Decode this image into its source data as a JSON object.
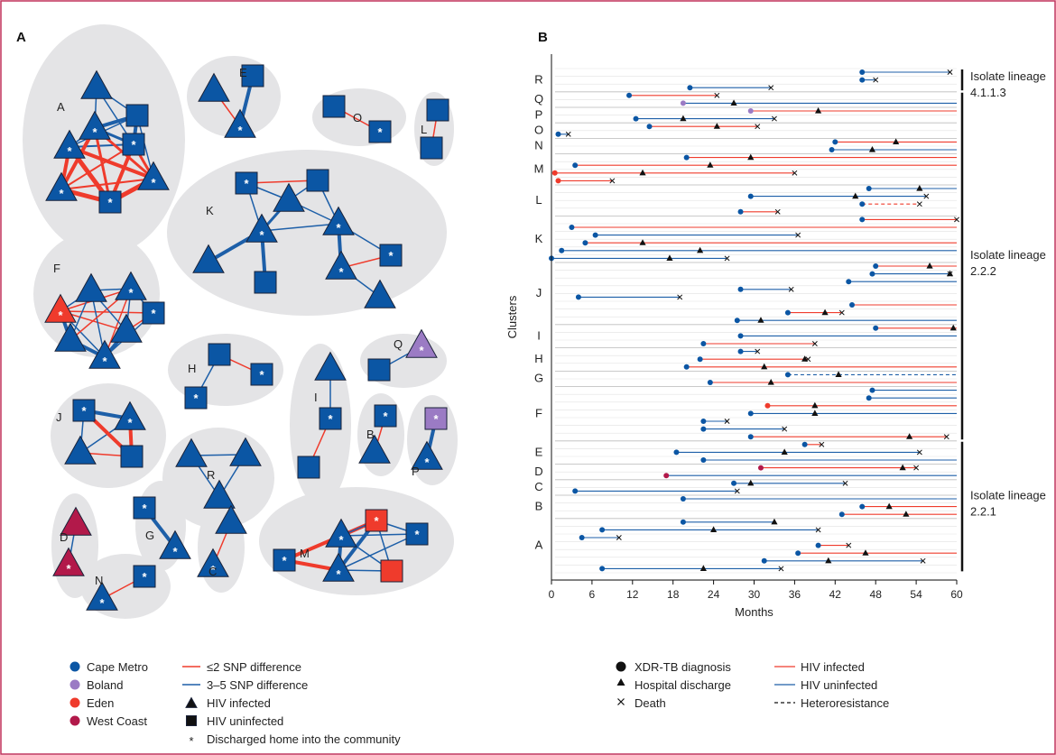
{
  "colors": {
    "cape_metro": "#0b56a4",
    "boland": "#9b7bc4",
    "eden": "#ef3b2c",
    "west_coast": "#b2194a",
    "edge_close": "#ef3b2c",
    "edge_far": "#1d5fa8",
    "blob": "#e4e4e6",
    "frame": "#c0305a"
  },
  "panel_a": {
    "label": "A",
    "clusters": [
      {
        "id": "A",
        "label": "A"
      },
      {
        "id": "E",
        "label": "E"
      },
      {
        "id": "O",
        "label": "O"
      },
      {
        "id": "L",
        "label": "L"
      },
      {
        "id": "K",
        "label": "K"
      },
      {
        "id": "F",
        "label": "F"
      },
      {
        "id": "H",
        "label": "H"
      },
      {
        "id": "Q",
        "label": "Q"
      },
      {
        "id": "J",
        "label": "J"
      },
      {
        "id": "I",
        "label": "I"
      },
      {
        "id": "B",
        "label": "B"
      },
      {
        "id": "P",
        "label": "P"
      },
      {
        "id": "R",
        "label": "R"
      },
      {
        "id": "G",
        "label": "G"
      },
      {
        "id": "D",
        "label": "D"
      },
      {
        "id": "C",
        "label": "C"
      },
      {
        "id": "N",
        "label": "N"
      },
      {
        "id": "M",
        "label": "M"
      }
    ],
    "legend": {
      "regions": [
        "Cape Metro",
        "Boland",
        "Eden",
        "West Coast"
      ],
      "edges": [
        "≤2 SNP difference",
        "3–5 SNP difference"
      ],
      "shapes": [
        "HIV infected",
        "HIV uninfected"
      ],
      "star": "Discharged home into the community",
      "star_symbol": "*"
    }
  },
  "panel_b": {
    "label": "B",
    "legend": {
      "markers": [
        "XDR-TB diagnosis",
        "Hospital discharge",
        "Death"
      ],
      "lines": [
        "HIV infected",
        "HIV uninfected",
        "Heteroresistance"
      ]
    },
    "lineages": [
      "Isolate lineage 4.1.1.3",
      "Isolate lineage 2.2.2",
      "Isolate lineage 2.2.1"
    ]
  },
  "chart_data": {
    "type": "timeline",
    "xlabel": "Months",
    "ylabel": "Clusters",
    "xlim": [
      0,
      60
    ],
    "xticks": [
      0,
      6,
      12,
      18,
      24,
      30,
      36,
      42,
      48,
      54,
      60
    ],
    "patients": [
      {
        "cluster": "R",
        "start": 46,
        "end": 59,
        "hiv": false,
        "discharge": null,
        "death": 59,
        "hetero": false,
        "lineage": "4.1.1.3"
      },
      {
        "cluster": "R",
        "start": 46,
        "end": 48,
        "hiv": false,
        "discharge": null,
        "death": 48,
        "hetero": false,
        "lineage": "4.1.1.3"
      },
      {
        "cluster": "R",
        "start": 20.5,
        "end": 32.5,
        "hiv": false,
        "discharge": null,
        "death": 32.5,
        "hetero": false,
        "lineage": "4.1.1.3"
      },
      {
        "cluster": "Q",
        "start": 11.5,
        "end": 24.5,
        "hiv": true,
        "discharge": null,
        "death": 24.5,
        "hetero": false,
        "lineage": "2.2.2"
      },
      {
        "cluster": "Q",
        "start": 19.5,
        "end": 60,
        "hiv": false,
        "discharge": 27,
        "death": null,
        "hetero": false,
        "lineage": "2.2.2",
        "region": "Boland"
      },
      {
        "cluster": "P",
        "start": 29.5,
        "end": 60,
        "hiv": true,
        "discharge": 39.5,
        "death": null,
        "hetero": false,
        "lineage": "2.2.2",
        "region": "Boland"
      },
      {
        "cluster": "P",
        "start": 12.5,
        "end": 33,
        "hiv": false,
        "discharge": 19.5,
        "death": 33,
        "hetero": false,
        "lineage": "2.2.2"
      },
      {
        "cluster": "O",
        "start": 14.5,
        "end": 30.5,
        "hiv": true,
        "discharge": 24.5,
        "death": 30.5,
        "hetero": false,
        "lineage": "2.2.2"
      },
      {
        "cluster": "O",
        "start": 1,
        "end": 2.5,
        "hiv": false,
        "discharge": null,
        "death": 2.5,
        "hetero": false,
        "lineage": "2.2.2"
      },
      {
        "cluster": "N",
        "start": 42,
        "end": 60,
        "hiv": true,
        "discharge": 51,
        "death": null,
        "hetero": false,
        "lineage": "2.2.2"
      },
      {
        "cluster": "N",
        "start": 41.5,
        "end": 60,
        "hiv": false,
        "discharge": 47.5,
        "death": null,
        "hetero": false,
        "lineage": "2.2.2"
      },
      {
        "cluster": "M",
        "start": 20,
        "end": 60,
        "hiv": true,
        "discharge": 29.5,
        "death": null,
        "hetero": false,
        "lineage": "2.2.2"
      },
      {
        "cluster": "M",
        "start": 3.5,
        "end": 60,
        "hiv": true,
        "discharge": 23.5,
        "death": null,
        "hetero": false,
        "lineage": "2.2.2"
      },
      {
        "cluster": "M",
        "start": 0.5,
        "end": 36,
        "hiv": true,
        "discharge": 13.5,
        "death": 36,
        "hetero": false,
        "lineage": "2.2.2",
        "region": "Eden"
      },
      {
        "cluster": "M",
        "start": 1,
        "end": 9,
        "hiv": true,
        "discharge": null,
        "death": 9,
        "hetero": false,
        "lineage": "2.2.2",
        "region": "Eden"
      },
      {
        "cluster": "L",
        "start": 47,
        "end": 60,
        "hiv": false,
        "discharge": 54.5,
        "death": null,
        "hetero": false,
        "lineage": "2.2.2"
      },
      {
        "cluster": "L",
        "start": 29.5,
        "end": 55.5,
        "hiv": false,
        "discharge": 45,
        "death": 55.5,
        "hetero": false,
        "lineage": "2.2.2"
      },
      {
        "cluster": "L",
        "start": 46,
        "end": 54.5,
        "hiv": true,
        "discharge": null,
        "death": 54.5,
        "hetero": true,
        "lineage": "2.2.2"
      },
      {
        "cluster": "L",
        "start": 28,
        "end": 33.5,
        "hiv": true,
        "discharge": null,
        "death": 33.5,
        "hetero": false,
        "lineage": "2.2.2"
      },
      {
        "cluster": "K",
        "start": 46,
        "end": 60,
        "hiv": true,
        "discharge": null,
        "death": 60,
        "hetero": false,
        "lineage": "2.2.2"
      },
      {
        "cluster": "K",
        "start": 3,
        "end": 60,
        "hiv": true,
        "discharge": null,
        "death": null,
        "hetero": false,
        "lineage": "2.2.2"
      },
      {
        "cluster": "K",
        "start": 6.5,
        "end": 36.5,
        "hiv": false,
        "discharge": null,
        "death": 36.5,
        "hetero": false,
        "lineage": "2.2.2"
      },
      {
        "cluster": "K",
        "start": 5,
        "end": 60,
        "hiv": true,
        "discharge": 13.5,
        "death": null,
        "hetero": false,
        "lineage": "2.2.2"
      },
      {
        "cluster": "K",
        "start": 1.5,
        "end": 60,
        "hiv": false,
        "discharge": 22,
        "death": null,
        "hetero": false,
        "lineage": "2.2.2"
      },
      {
        "cluster": "K",
        "start": 0,
        "end": 26,
        "hiv": false,
        "discharge": 17.5,
        "death": 26,
        "hetero": false,
        "lineage": "2.2.2"
      },
      {
        "cluster": "J",
        "start": 48,
        "end": 60,
        "hiv": true,
        "discharge": 56,
        "death": null,
        "hetero": false,
        "lineage": "2.2.2"
      },
      {
        "cluster": "J",
        "start": 47.5,
        "end": 59,
        "hiv": false,
        "discharge": 59,
        "death": 59,
        "hetero": false,
        "lineage": "2.2.2"
      },
      {
        "cluster": "J",
        "start": 44,
        "end": 60,
        "hiv": false,
        "discharge": null,
        "death": null,
        "hetero": false,
        "lineage": "2.2.2"
      },
      {
        "cluster": "J",
        "start": 28,
        "end": 35.5,
        "hiv": false,
        "discharge": null,
        "death": 35.5,
        "hetero": false,
        "lineage": "2.2.2"
      },
      {
        "cluster": "J",
        "start": 4,
        "end": 19,
        "hiv": false,
        "discharge": null,
        "death": 19,
        "hetero": false,
        "lineage": "2.2.2"
      },
      {
        "cluster": "J",
        "start": 44.5,
        "end": 60,
        "hiv": true,
        "discharge": null,
        "death": null,
        "hetero": false,
        "lineage": "2.2.2"
      },
      {
        "cluster": "J",
        "start": 35,
        "end": 43,
        "hiv": true,
        "discharge": 40.5,
        "death": 43,
        "hetero": false,
        "lineage": "2.2.2"
      },
      {
        "cluster": "J",
        "start": 27.5,
        "end": 60,
        "hiv": false,
        "discharge": 31,
        "death": null,
        "hetero": false,
        "lineage": "2.2.2"
      },
      {
        "cluster": "I",
        "start": 48,
        "end": 60,
        "hiv": true,
        "discharge": 59.5,
        "death": null,
        "hetero": false,
        "lineage": "2.2.2"
      },
      {
        "cluster": "I",
        "start": 28,
        "end": 60,
        "hiv": false,
        "discharge": null,
        "death": null,
        "hetero": false,
        "lineage": "2.2.2"
      },
      {
        "cluster": "I",
        "start": 22.5,
        "end": 39,
        "hiv": true,
        "discharge": null,
        "death": 39,
        "hetero": false,
        "lineage": "2.2.2"
      },
      {
        "cluster": "H",
        "start": 28,
        "end": 30.5,
        "hiv": false,
        "discharge": null,
        "death": 30.5,
        "hetero": false,
        "lineage": "2.2.2"
      },
      {
        "cluster": "H",
        "start": 22,
        "end": 38,
        "hiv": true,
        "discharge": 37.5,
        "death": 38,
        "hetero": false,
        "lineage": "2.2.2"
      },
      {
        "cluster": "H",
        "start": 20,
        "end": 60,
        "hiv": true,
        "discharge": 31.5,
        "death": null,
        "hetero": false,
        "lineage": "2.2.2"
      },
      {
        "cluster": "G",
        "start": 35,
        "end": 60,
        "hiv": false,
        "discharge": 42.5,
        "death": null,
        "hetero": true,
        "lineage": "2.2.2"
      },
      {
        "cluster": "G",
        "start": 23.5,
        "end": 60,
        "hiv": true,
        "discharge": 32.5,
        "death": null,
        "hetero": false,
        "lineage": "2.2.2"
      },
      {
        "cluster": "F",
        "start": 47.5,
        "end": 60,
        "hiv": false,
        "discharge": null,
        "death": null,
        "hetero": false,
        "lineage": "2.2.2"
      },
      {
        "cluster": "F",
        "start": 47,
        "end": 60,
        "hiv": false,
        "discharge": null,
        "death": null,
        "hetero": false,
        "lineage": "2.2.2"
      },
      {
        "cluster": "F",
        "start": 32,
        "end": 60,
        "hiv": true,
        "discharge": 39,
        "death": null,
        "hetero": false,
        "lineage": "2.2.2",
        "region": "Eden"
      },
      {
        "cluster": "F",
        "start": 29.5,
        "end": 60,
        "hiv": false,
        "discharge": 39,
        "death": null,
        "hetero": false,
        "lineage": "2.2.2"
      },
      {
        "cluster": "F",
        "start": 22.5,
        "end": 26,
        "hiv": false,
        "discharge": null,
        "death": 26,
        "hetero": false,
        "lineage": "2.2.2"
      },
      {
        "cluster": "F",
        "start": 22.5,
        "end": 34.5,
        "hiv": false,
        "discharge": null,
        "death": 34.5,
        "hetero": false,
        "lineage": "2.2.2"
      },
      {
        "cluster": "F",
        "start": 29.5,
        "end": 58.5,
        "hiv": true,
        "discharge": 53,
        "death": 58.5,
        "hetero": false,
        "lineage": "2.2.2"
      },
      {
        "cluster": "E",
        "start": 37.5,
        "end": 40,
        "hiv": true,
        "discharge": null,
        "death": 40,
        "hetero": false,
        "lineage": "2.2.1"
      },
      {
        "cluster": "E",
        "start": 18.5,
        "end": 54.5,
        "hiv": false,
        "discharge": 34.5,
        "death": 54.5,
        "hetero": false,
        "lineage": "2.2.1"
      },
      {
        "cluster": "E",
        "start": 22.5,
        "end": 60,
        "hiv": false,
        "discharge": null,
        "death": null,
        "hetero": false,
        "lineage": "2.2.1"
      },
      {
        "cluster": "D",
        "start": 31,
        "end": 54,
        "hiv": true,
        "discharge": 52,
        "death": 54,
        "hetero": false,
        "lineage": "2.2.1",
        "region": "West Coast"
      },
      {
        "cluster": "D",
        "start": 17,
        "end": 60,
        "hiv": false,
        "discharge": null,
        "death": null,
        "hetero": false,
        "lineage": "2.2.1",
        "region": "West Coast"
      },
      {
        "cluster": "C",
        "start": 27,
        "end": 43.5,
        "hiv": false,
        "discharge": 29.5,
        "death": 43.5,
        "hetero": false,
        "lineage": "2.2.1"
      },
      {
        "cluster": "C",
        "start": 3.5,
        "end": 27.5,
        "hiv": false,
        "discharge": null,
        "death": 27.5,
        "hetero": false,
        "lineage": "2.2.1"
      },
      {
        "cluster": "B",
        "start": 19.5,
        "end": 60,
        "hiv": false,
        "discharge": null,
        "death": null,
        "hetero": false,
        "lineage": "2.2.1"
      },
      {
        "cluster": "B",
        "start": 46,
        "end": 60,
        "hiv": true,
        "discharge": 50,
        "death": null,
        "hetero": false,
        "lineage": "2.2.1"
      },
      {
        "cluster": "B",
        "start": 43,
        "end": 60,
        "hiv": true,
        "discharge": 52.5,
        "death": null,
        "hetero": false,
        "lineage": "2.2.1"
      },
      {
        "cluster": "A",
        "start": 19.5,
        "end": 33,
        "hiv": false,
        "discharge": 33,
        "death": null,
        "hetero": false,
        "lineage": "2.2.1"
      },
      {
        "cluster": "A",
        "start": 7.5,
        "end": 39.5,
        "hiv": false,
        "discharge": 24,
        "death": 39.5,
        "hetero": false,
        "lineage": "2.2.1"
      },
      {
        "cluster": "A",
        "start": 4.5,
        "end": 10,
        "hiv": false,
        "discharge": null,
        "death": 10,
        "hetero": false,
        "lineage": "2.2.1"
      },
      {
        "cluster": "A",
        "start": 39.5,
        "end": 44,
        "hiv": true,
        "discharge": null,
        "death": 44,
        "hetero": false,
        "lineage": "2.2.1"
      },
      {
        "cluster": "A",
        "start": 36.5,
        "end": 60,
        "hiv": true,
        "discharge": 46.5,
        "death": null,
        "hetero": false,
        "lineage": "2.2.1"
      },
      {
        "cluster": "A",
        "start": 31.5,
        "end": 55,
        "hiv": false,
        "discharge": 41,
        "death": 55,
        "hetero": false,
        "lineage": "2.2.1"
      },
      {
        "cluster": "A",
        "start": 7.5,
        "end": 34,
        "hiv": false,
        "discharge": 22.5,
        "death": 34,
        "hetero": false,
        "lineage": "2.2.1"
      }
    ]
  }
}
